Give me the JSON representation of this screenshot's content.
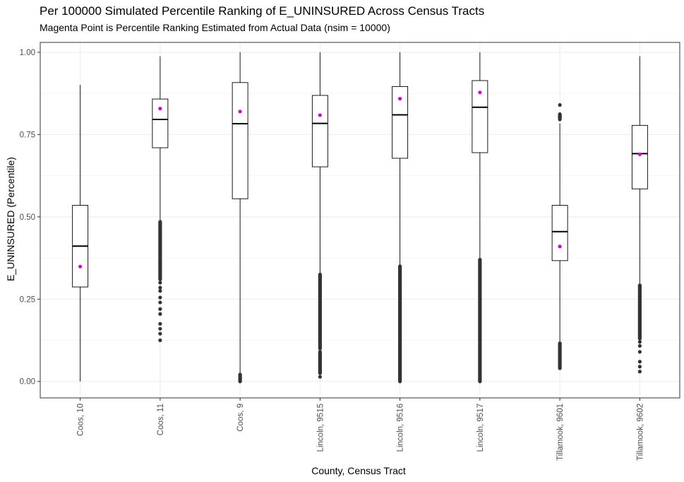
{
  "chart_data": {
    "type": "box",
    "title": "Per 100000 Simulated Percentile Ranking of E_UNINSURED Across Census Tracts",
    "subtitle": "Magenta Point is Percentile Ranking Estimated from Actual Data (nsim = 10000)",
    "xlabel": "County, Census Tract",
    "ylabel": "E_UNINSURED (Percentile)",
    "ylim": [
      -0.05,
      1.03
    ],
    "yticks": [
      0.0,
      0.25,
      0.5,
      0.75,
      1.0
    ],
    "ytick_labels": [
      "0.00",
      "0.25",
      "0.50",
      "0.75",
      "1.00"
    ],
    "grid": true,
    "categories": [
      "Coos, 10",
      "Coos, 11",
      "Coos, 9",
      "Lincoln, 9515",
      "Lincoln, 9516",
      "Lincoln, 9517",
      "Tillamook, 9601",
      "Tillamook, 9602"
    ],
    "boxes": [
      {
        "category": "Coos, 10",
        "whisker_low": 0.0,
        "q1": 0.287,
        "median": 0.411,
        "q3": 0.535,
        "whisker_high": 0.901,
        "outliers": [],
        "outlier_bands": [],
        "actual": 0.349
      },
      {
        "category": "Coos, 11",
        "whisker_low": 0.488,
        "q1": 0.71,
        "median": 0.796,
        "q3": 0.858,
        "whisker_high": 0.988,
        "outliers": [
          0.125,
          0.145,
          0.16,
          0.175,
          0.205,
          0.22,
          0.24,
          0.255,
          0.275,
          0.285,
          0.3
        ],
        "outlier_bands": [
          [
            0.31,
            0.485
          ]
        ],
        "actual": 0.829
      },
      {
        "category": "Coos, 9",
        "whisker_low": 0.023,
        "q1": 0.555,
        "median": 0.783,
        "q3": 0.908,
        "whisker_high": 1.0,
        "outliers": [],
        "outlier_bands": [
          [
            0.0,
            0.021
          ]
        ],
        "actual": 0.82
      },
      {
        "category": "Lincoln, 9515",
        "whisker_low": 0.329,
        "q1": 0.652,
        "median": 0.784,
        "q3": 0.869,
        "whisker_high": 1.0,
        "outliers": [
          0.014
        ],
        "outlier_bands": [
          [
            0.025,
            0.09
          ],
          [
            0.1,
            0.325
          ]
        ],
        "actual": 0.809
      },
      {
        "category": "Lincoln, 9516",
        "whisker_low": 0.352,
        "q1": 0.678,
        "median": 0.81,
        "q3": 0.896,
        "whisker_high": 1.0,
        "outliers": [],
        "outlier_bands": [
          [
            0.0,
            0.35
          ]
        ],
        "actual": 0.859
      },
      {
        "category": "Lincoln, 9517",
        "whisker_low": 0.372,
        "q1": 0.695,
        "median": 0.833,
        "q3": 0.914,
        "whisker_high": 1.0,
        "outliers": [],
        "outlier_bands": [
          [
            0.0,
            0.37
          ]
        ],
        "actual": 0.878
      },
      {
        "category": "Tillamook, 9601",
        "whisker_low": 0.118,
        "q1": 0.367,
        "median": 0.455,
        "q3": 0.535,
        "whisker_high": 0.784,
        "outliers": [
          0.806,
          0.84
        ],
        "outlier_bands": [
          [
            0.04,
            0.116
          ],
          [
            0.796,
            0.812
          ]
        ],
        "actual": 0.41
      },
      {
        "category": "Tillamook, 9602",
        "whisker_low": 0.295,
        "q1": 0.585,
        "median": 0.692,
        "q3": 0.778,
        "whisker_high": 0.988,
        "outliers": [
          0.03,
          0.045,
          0.06,
          0.09,
          0.108,
          0.12
        ],
        "outlier_bands": [
          [
            0.13,
            0.292
          ]
        ],
        "actual": 0.69
      }
    ],
    "colors": {
      "actual_point": "#d400d4",
      "outlier": "#333333",
      "box_line": "#000000",
      "grid": "#ebebeb",
      "panel_border": "#333333"
    }
  }
}
